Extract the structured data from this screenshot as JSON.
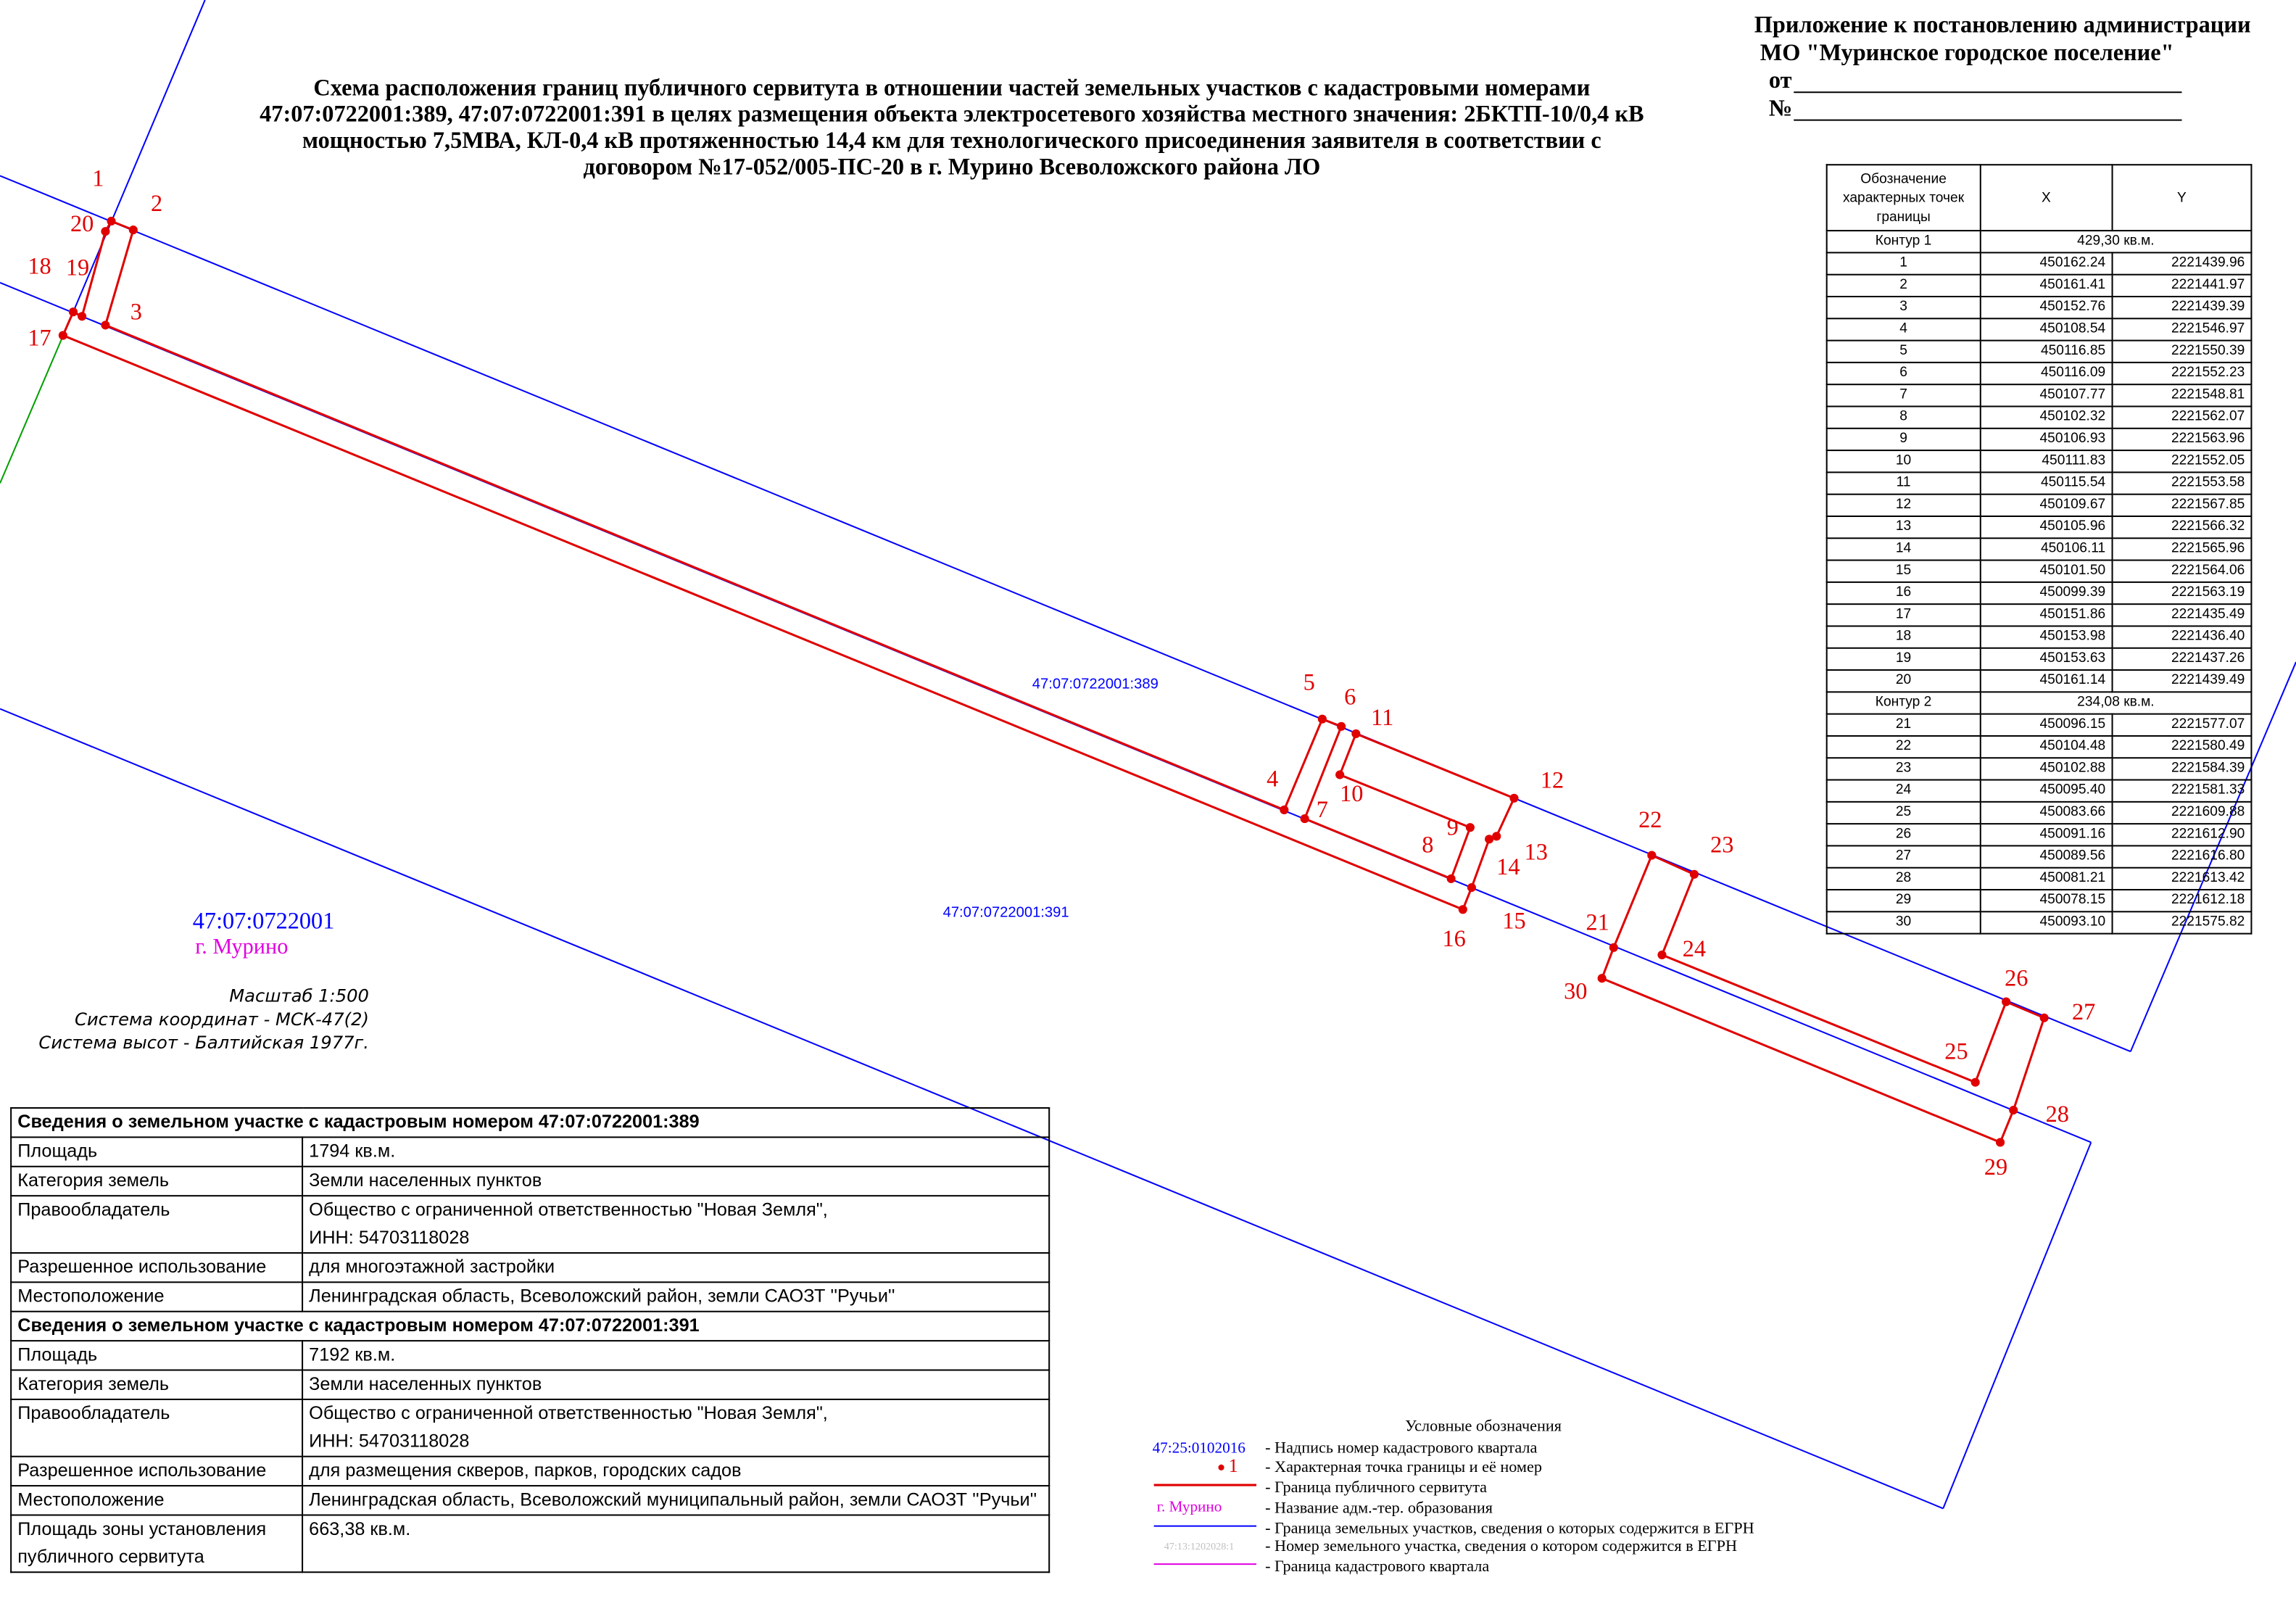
{
  "header": {
    "appendix": [
      "Приложение к постановлению администрации",
      "МО \"Муринское городское поселение\"",
      "от",
      "№"
    ]
  },
  "title": [
    "Схема расположения границ публичного сервитута в отношении частей земельных участков с кадастровыми номерами",
    "47:07:0722001:389, 47:07:0722001:391 в целях размещения объекта электросетевого хозяйства местного значения: 2БКТП-10/0,4 кВ",
    "мощностью 7,5МВА, КЛ-0,4 кВ протяженностью 14,4 км для технологического присоединения заявителя в соответствии с",
    "договором №17-052/005-ПС-20 в г. Мурино Всеволожского района ЛО"
  ],
  "map": {
    "parcel_389": "47:07:0722001:389",
    "parcel_391": "47:07:0722001:391",
    "quarter": "47:07:0722001",
    "locality": "г. Мурино",
    "points": [
      "1",
      "2",
      "3",
      "4",
      "5",
      "6",
      "7",
      "8",
      "9",
      "10",
      "11",
      "12",
      "13",
      "14",
      "15",
      "16",
      "17",
      "18",
      "19",
      "20",
      "21",
      "22",
      "23",
      "24",
      "25",
      "26",
      "27",
      "28",
      "29",
      "30"
    ]
  },
  "scale_note": [
    "Масштаб 1:500",
    "Система координат - МСК-47(2)",
    "Система высот - Балтийская 1977г."
  ],
  "coordinates_table": {
    "header": [
      "Обозначение характерных точек границы",
      "X",
      "Y"
    ],
    "contours": [
      {
        "name": "Контур 1",
        "area": "429,30 кв.м.",
        "rows": [
          [
            "1",
            "450162.24",
            "2221439.96"
          ],
          [
            "2",
            "450161.41",
            "2221441.97"
          ],
          [
            "3",
            "450152.76",
            "2221439.39"
          ],
          [
            "4",
            "450108.54",
            "2221546.97"
          ],
          [
            "5",
            "450116.85",
            "2221550.39"
          ],
          [
            "6",
            "450116.09",
            "2221552.23"
          ],
          [
            "7",
            "450107.77",
            "2221548.81"
          ],
          [
            "8",
            "450102.32",
            "2221562.07"
          ],
          [
            "9",
            "450106.93",
            "2221563.96"
          ],
          [
            "10",
            "450111.83",
            "2221552.05"
          ],
          [
            "11",
            "450115.54",
            "2221553.58"
          ],
          [
            "12",
            "450109.67",
            "2221567.85"
          ],
          [
            "13",
            "450105.96",
            "2221566.32"
          ],
          [
            "14",
            "450106.11",
            "2221565.96"
          ],
          [
            "15",
            "450101.50",
            "2221564.06"
          ],
          [
            "16",
            "450099.39",
            "2221563.19"
          ],
          [
            "17",
            "450151.86",
            "2221435.49"
          ],
          [
            "18",
            "450153.98",
            "2221436.40"
          ],
          [
            "19",
            "450153.63",
            "2221437.26"
          ],
          [
            "20",
            "450161.14",
            "2221439.49"
          ]
        ]
      },
      {
        "name": "Контур 2",
        "area": "234,08 кв.м.",
        "rows": [
          [
            "21",
            "450096.15",
            "2221577.07"
          ],
          [
            "22",
            "450104.48",
            "2221580.49"
          ],
          [
            "23",
            "450102.88",
            "2221584.39"
          ],
          [
            "24",
            "450095.40",
            "2221581.33"
          ],
          [
            "25",
            "450083.66",
            "2221609.88"
          ],
          [
            "26",
            "450091.16",
            "2221612.90"
          ],
          [
            "27",
            "450089.56",
            "2221616.80"
          ],
          [
            "28",
            "450081.21",
            "2221613.42"
          ],
          [
            "29",
            "450078.15",
            "2221612.18"
          ],
          [
            "30",
            "450093.10",
            "2221575.82"
          ]
        ]
      }
    ]
  },
  "parcels_table": {
    "sections": [
      {
        "heading": "Сведения о земельном участке с кадастровым номером 47:07:0722001:389",
        "rows": [
          {
            "label": "Площадь",
            "value": [
              "1794 кв.м."
            ]
          },
          {
            "label": "Категория земель",
            "value": [
              "Земли населенных пунктов"
            ]
          },
          {
            "label": "Правообладатель",
            "value": [
              "Общество с ограниченной ответственностью \"Новая Земля\",",
              "ИНН: 54703118028"
            ]
          },
          {
            "label": "Разрешенное использование",
            "value": [
              "для многоэтажной застройки"
            ]
          },
          {
            "label": "Местоположение",
            "value": [
              "Ленинградская область, Всеволожский район, земли САОЗТ ''Ручьи''"
            ]
          }
        ]
      },
      {
        "heading": "Сведения о земельном участке с кадастровым номером 47:07:0722001:391",
        "rows": [
          {
            "label": "Площадь",
            "value": [
              "7192 кв.м."
            ]
          },
          {
            "label": "Категория земель",
            "value": [
              "Земли населенных пунктов"
            ]
          },
          {
            "label": "Правообладатель",
            "value": [
              "Общество с ограниченной ответственностью \"Новая Земля\",",
              "ИНН: 54703118028"
            ]
          },
          {
            "label": "Разрешенное использование",
            "value": [
              "для размещения скверов, парков, городских садов"
            ]
          },
          {
            "label": "Местоположение",
            "value": [
              "Ленинградская область, Всеволожский муниципальный район, земли САОЗТ ''Ручьи''"
            ]
          },
          {
            "label": "Площадь зоны установления публичного сервитута",
            "value": [
              "663,38 кв.м."
            ]
          }
        ]
      }
    ]
  },
  "legend": {
    "title": "Условные обозначения",
    "items": [
      {
        "sample": "47:25:0102016",
        "text": "- Надпись номер кадастрового квартала"
      },
      {
        "sample": "1",
        "text": "- Характерная точка границы и её номер"
      },
      {
        "text": "- Граница публичного сервитута"
      },
      {
        "sample": "г. Мурино",
        "text": "- Название адм.-тер. образования"
      },
      {
        "text": "- Граница земельных участков, сведения о которых содержится в ЕГРН"
      },
      {
        "sample": "47:13:1202028:1",
        "text": "- Номер земельного участка, сведения о котором содержится в ЕГРН"
      },
      {
        "text": "- Граница кадастрового квартала"
      }
    ]
  }
}
